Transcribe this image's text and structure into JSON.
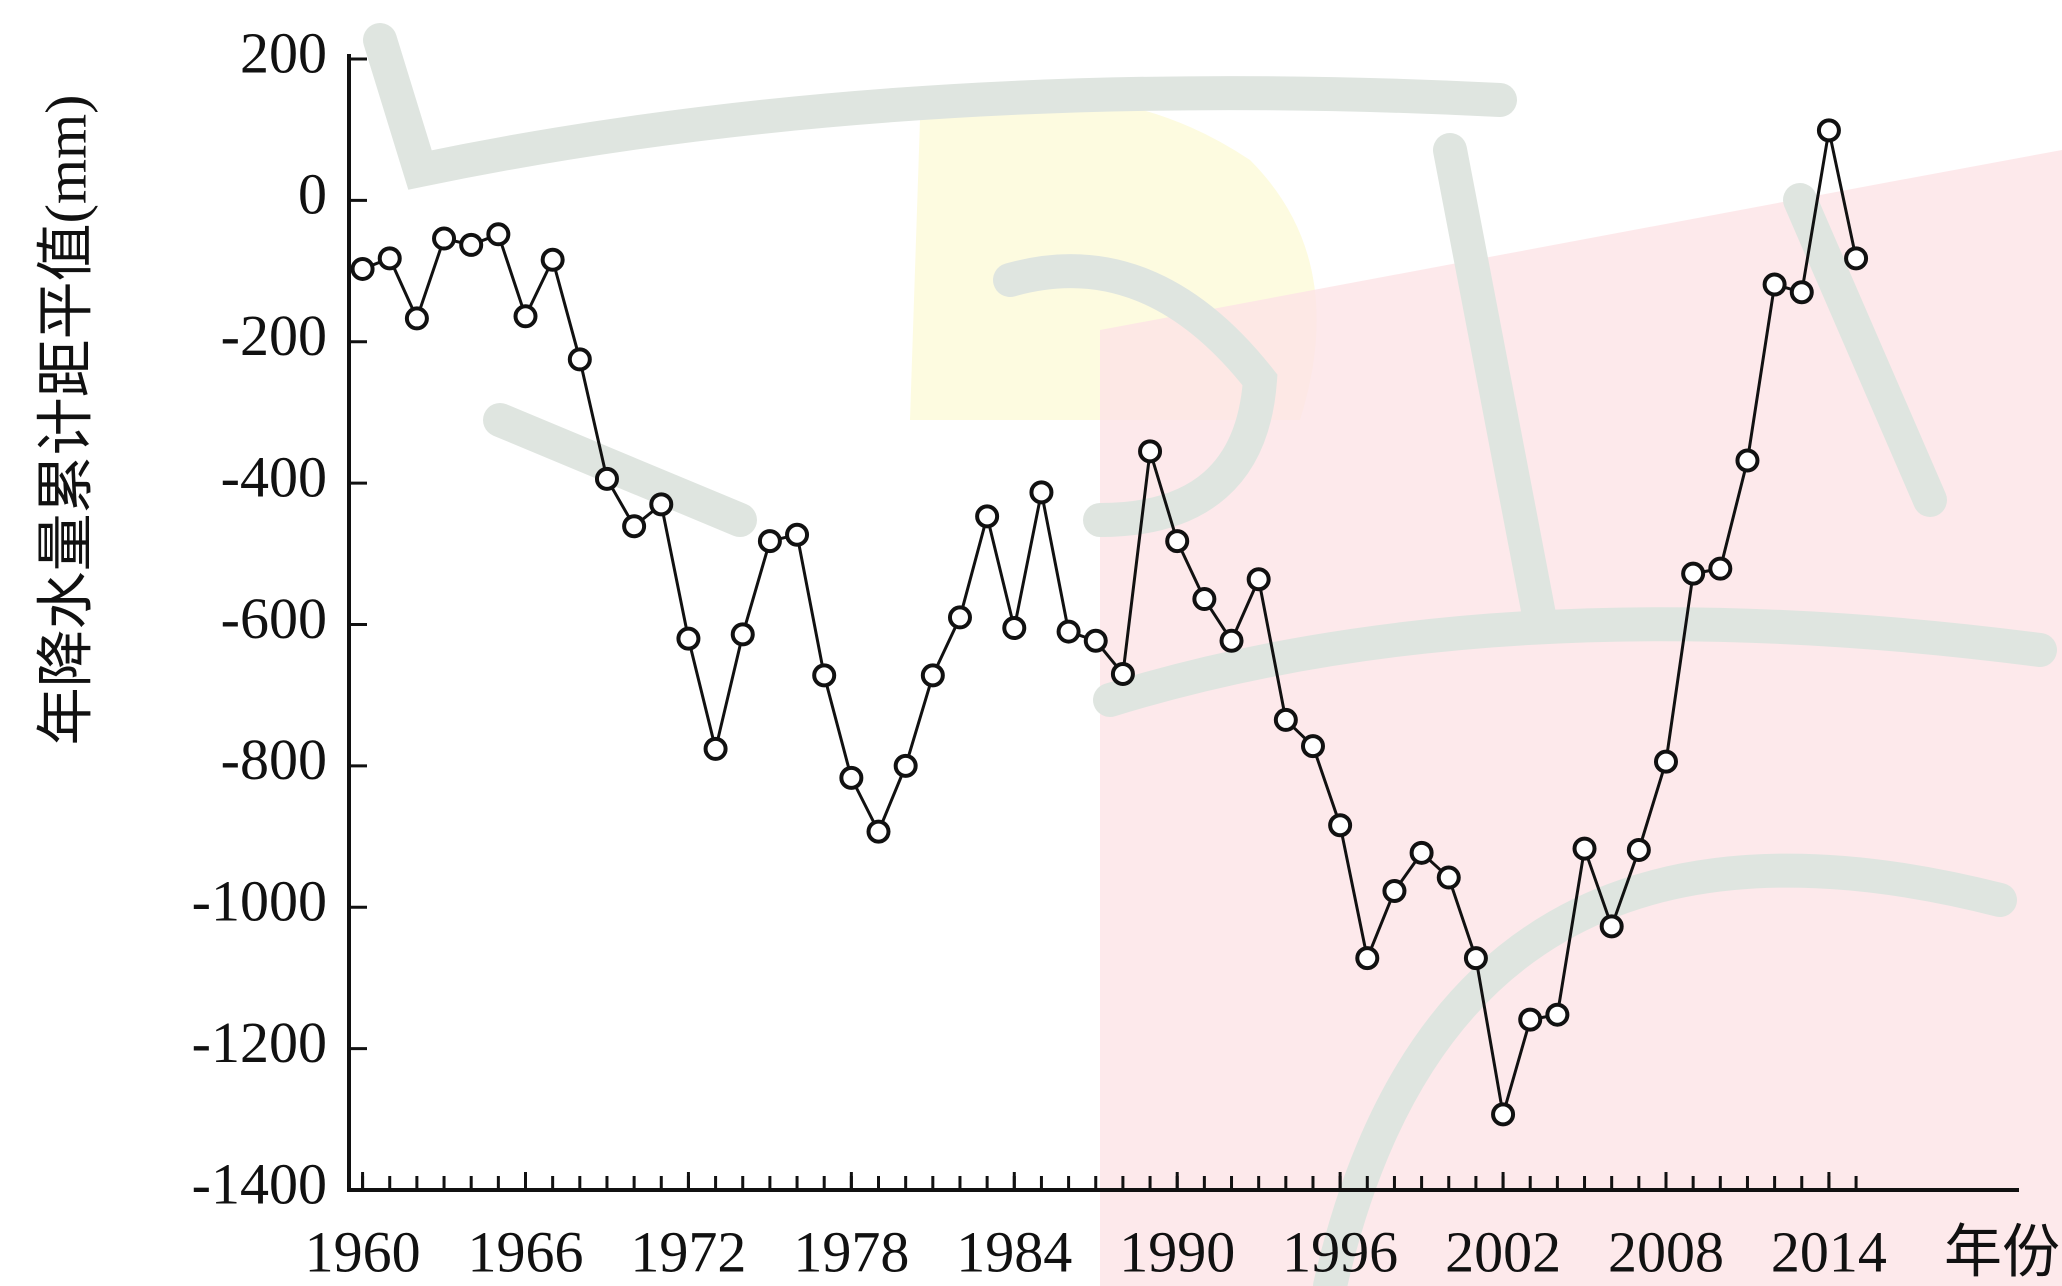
{
  "chart_data": {
    "type": "line",
    "y_label": "年降水量累计距平值(mm)",
    "x_label": "年份",
    "x": [
      1960,
      1961,
      1962,
      1963,
      1964,
      1965,
      1966,
      1967,
      1968,
      1969,
      1970,
      1971,
      1972,
      1973,
      1974,
      1975,
      1976,
      1977,
      1978,
      1979,
      1980,
      1981,
      1982,
      1983,
      1984,
      1985,
      1986,
      1987,
      1988,
      1989,
      1990,
      1991,
      1992,
      1993,
      1994,
      1995,
      1996,
      1997,
      1998,
      1999,
      2000,
      2001,
      2002,
      2003,
      2004,
      2005,
      2006,
      2007,
      2008,
      2009,
      2010,
      2011,
      2012,
      2013,
      2014,
      2015
    ],
    "values": [
      -97,
      -82,
      -167,
      -54,
      -63,
      -48,
      -164,
      -84,
      -225,
      -394,
      -461,
      -430,
      -620,
      -776,
      -614,
      -482,
      -473,
      -672,
      -817,
      -893,
      -800,
      -672,
      -590,
      -447,
      -605,
      -413,
      -610,
      -623,
      -670,
      -355,
      -482,
      -564,
      -623,
      -536,
      -735,
      -772,
      -884,
      -1072,
      -977,
      -923,
      -958,
      -1072,
      -1293,
      -1159,
      -1152,
      -917,
      -1027,
      -919,
      -794,
      -528,
      -521,
      -368,
      -119,
      -130,
      99,
      -82
    ],
    "color": "#111111",
    "xlim": [
      1959.5,
      2021
    ],
    "xticks": [
      1960,
      1966,
      1972,
      1978,
      1984,
      1990,
      1996,
      2002,
      2008,
      2014
    ],
    "ylim": [
      -1400,
      200
    ],
    "yticks": [
      200,
      0,
      -200,
      -400,
      -600,
      -800,
      -1000,
      -1200,
      -1400
    ]
  }
}
